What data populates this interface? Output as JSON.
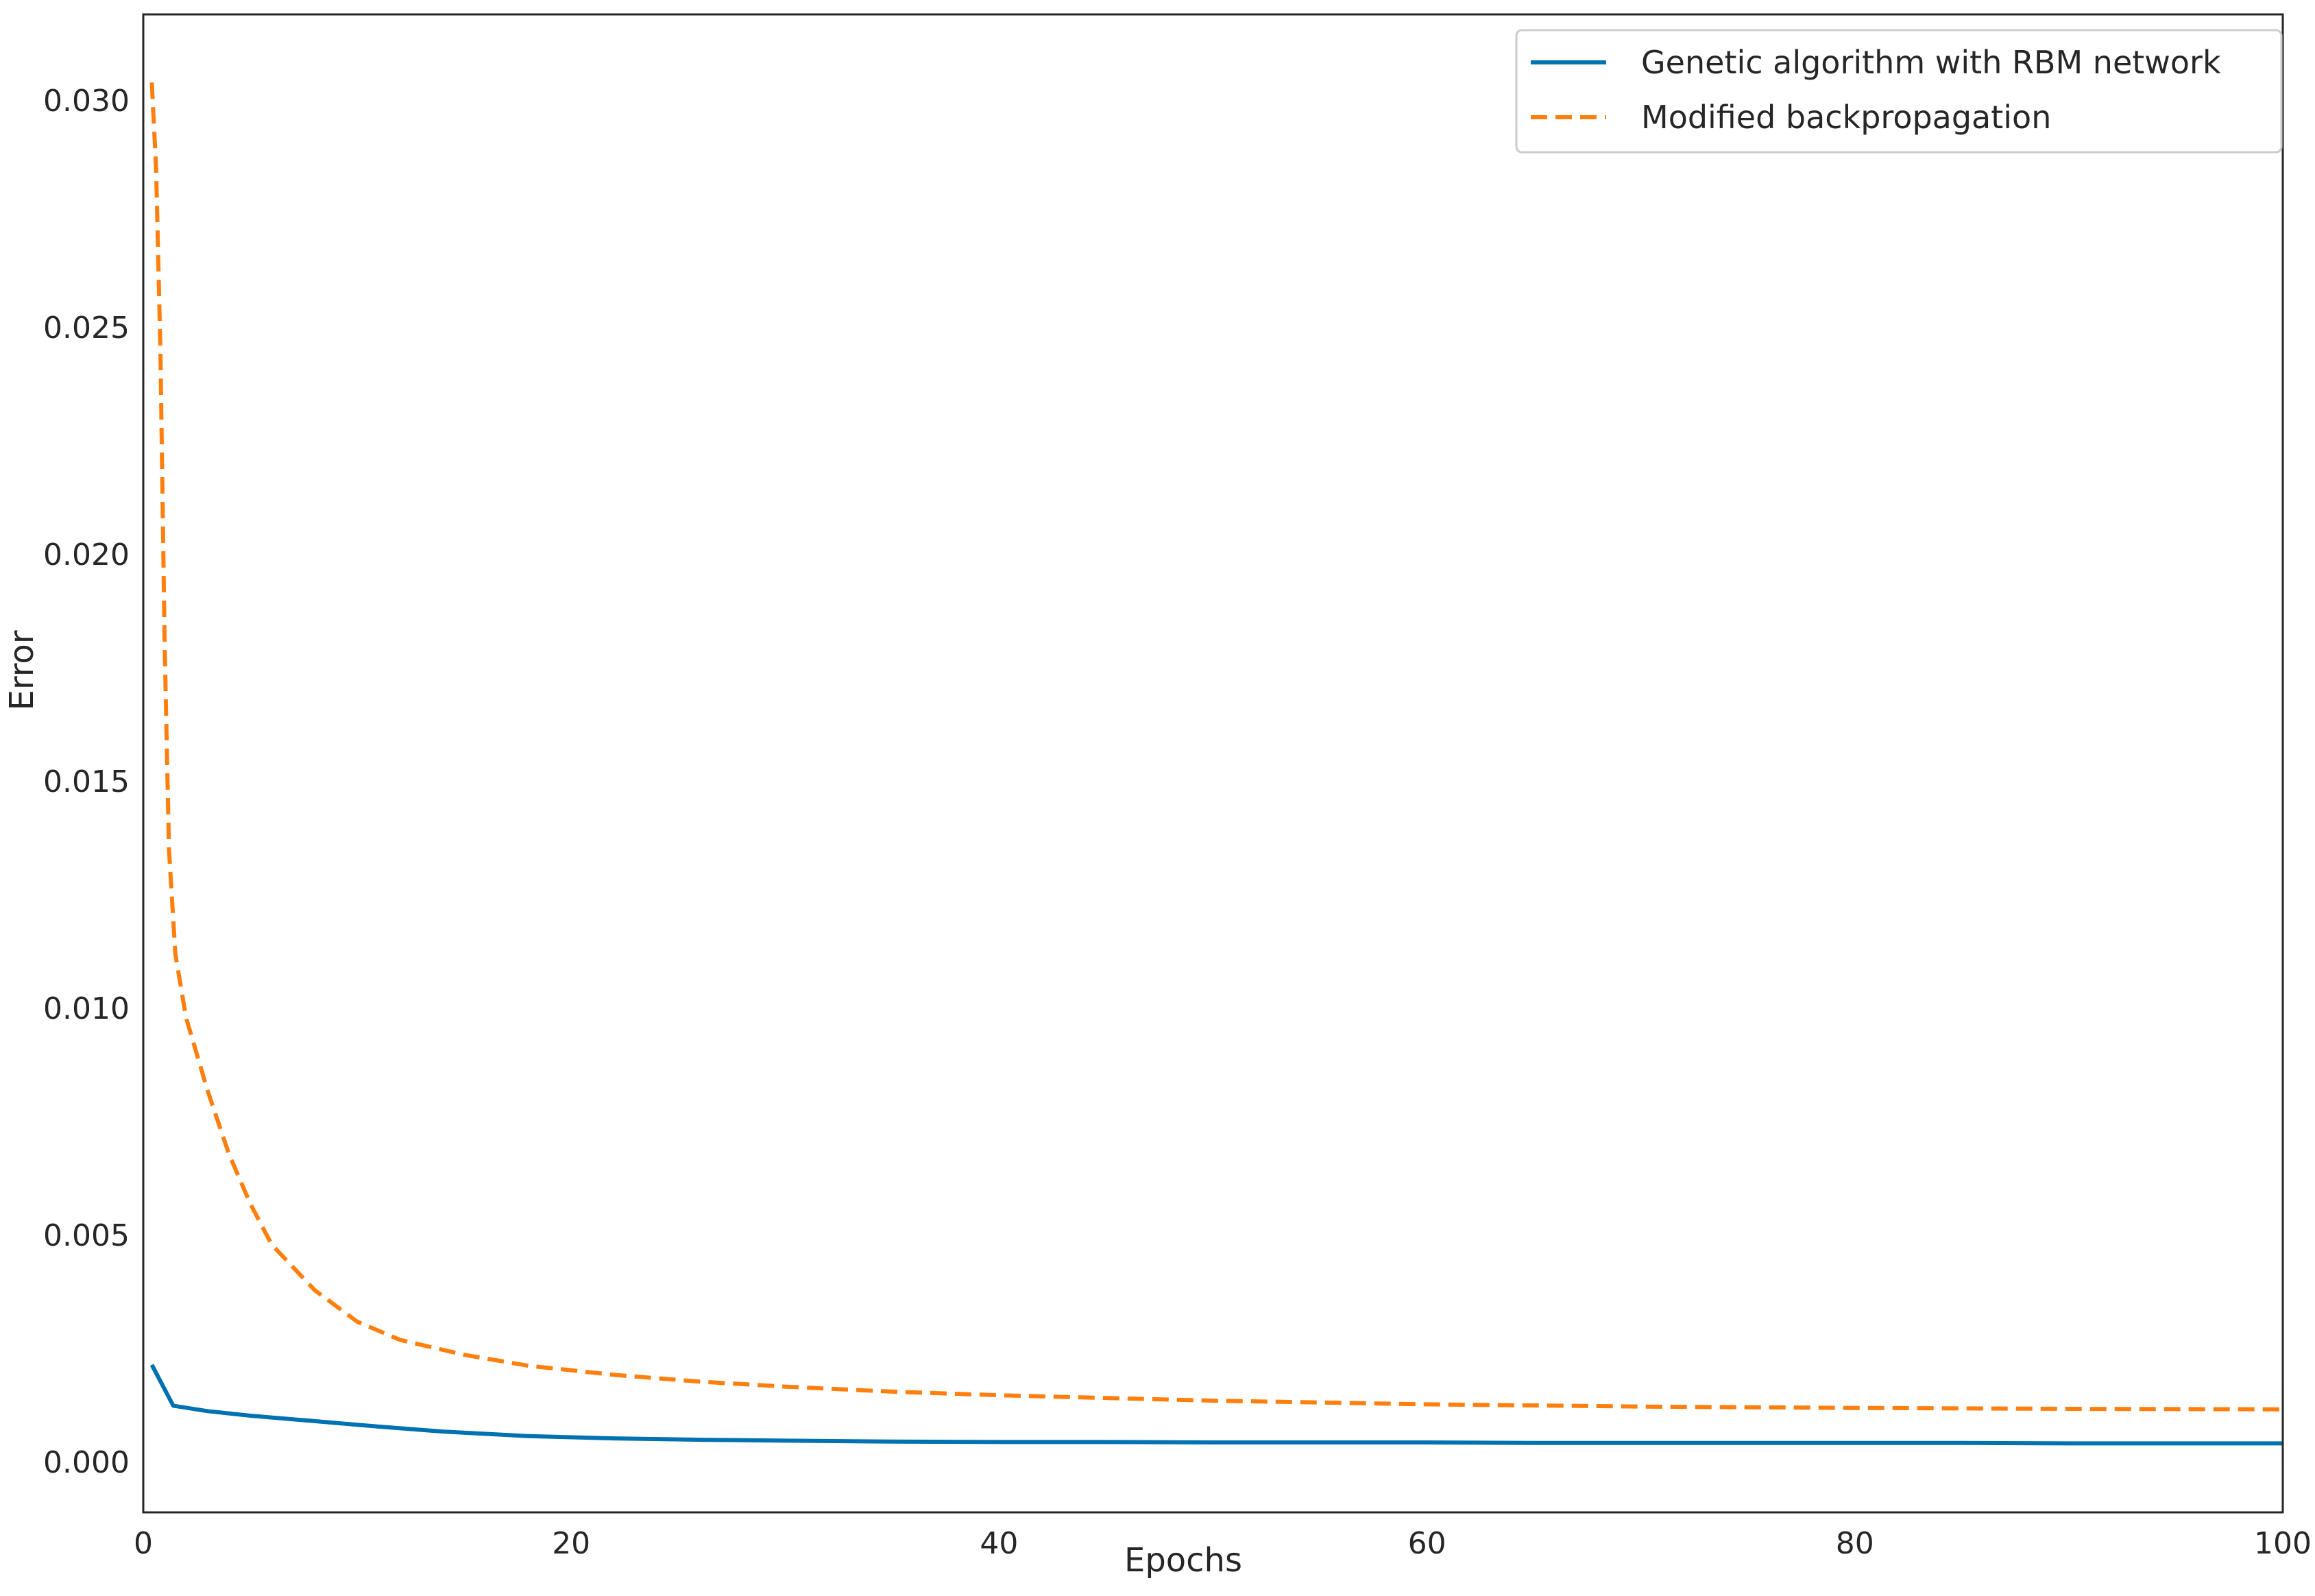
{
  "chart_data": {
    "type": "line",
    "xlabel": "Epochs",
    "ylabel": "Error",
    "xlim": [
      0,
      100
    ],
    "ylim": [
      -0.0011,
      0.0319
    ],
    "xticks": [
      0,
      20,
      40,
      60,
      80,
      100
    ],
    "xtick_labels": [
      "0",
      "20",
      "40",
      "60",
      "80",
      "100"
    ],
    "yticks": [
      0.0,
      0.005,
      0.01,
      0.015,
      0.02,
      0.025,
      0.03
    ],
    "ytick_labels": [
      "0.000",
      "0.005",
      "0.010",
      "0.015",
      "0.020",
      "0.025",
      "0.030"
    ],
    "grid": false,
    "legend_position": "top-right",
    "series": [
      {
        "name": "Genetic algorithm with RBM network",
        "color": "#0072B2",
        "style": "solid",
        "x": [
          0.4,
          1.4,
          3,
          5,
          8,
          11,
          14,
          18,
          22,
          26,
          30,
          35,
          40,
          45,
          50,
          55,
          60,
          65,
          70,
          75,
          80,
          85,
          90,
          95,
          100
        ],
        "y": [
          0.00215,
          0.00125,
          0.00113,
          0.00103,
          0.00091,
          0.00079,
          0.00068,
          0.00058,
          0.00053,
          0.0005,
          0.00048,
          0.00046,
          0.00045,
          0.00045,
          0.00044,
          0.00044,
          0.00044,
          0.00043,
          0.00043,
          0.00043,
          0.00043,
          0.00043,
          0.00042,
          0.00042,
          0.00042
        ]
      },
      {
        "name": "Modified backpropagation",
        "color": "#FF7F0E",
        "style": "dashed",
        "x": [
          0.4,
          0.6,
          0.8,
          1.0,
          1.2,
          1.5,
          2,
          3,
          4,
          5,
          6,
          8,
          10,
          12,
          15,
          18,
          22,
          26,
          30,
          35,
          40,
          50,
          60,
          70,
          80,
          90,
          100
        ],
        "y": [
          0.0304,
          0.0285,
          0.0245,
          0.018,
          0.0135,
          0.0112,
          0.0098,
          0.0082,
          0.0068,
          0.0057,
          0.0048,
          0.0038,
          0.0031,
          0.0027,
          0.00237,
          0.00213,
          0.00193,
          0.00178,
          0.00167,
          0.00156,
          0.00148,
          0.00136,
          0.00128,
          0.00123,
          0.0012,
          0.00118,
          0.00117
        ]
      }
    ]
  }
}
